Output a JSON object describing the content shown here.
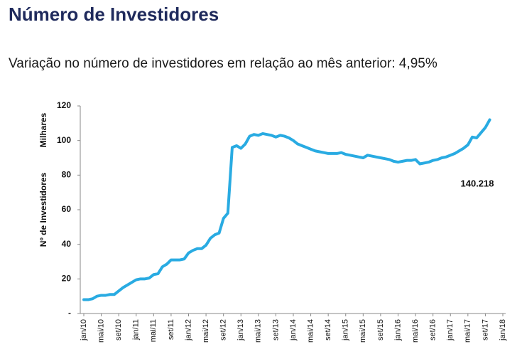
{
  "chart_data": {
    "type": "line",
    "title": "Número de Investidores",
    "subtitle": "Variação no número de investidores em relação ao mês anterior: 4,95%",
    "y_label": "Nº de Investidores",
    "y_unit": "Milhares",
    "annotation": "140.218",
    "color": "#29abe2",
    "ylim": [
      0,
      120
    ],
    "yticks": [
      {
        "value": 0,
        "label": "-"
      },
      20,
      40,
      60,
      80,
      100,
      120
    ],
    "categories": [
      "jan/10",
      null,
      null,
      null,
      "mai/10",
      null,
      null,
      null,
      "set/10",
      null,
      null,
      null,
      "jan/11",
      null,
      null,
      null,
      "mai/11",
      null,
      null,
      null,
      "set/11",
      null,
      null,
      null,
      "jan/12",
      null,
      null,
      null,
      "mai/12",
      null,
      null,
      null,
      "set/12",
      null,
      null,
      null,
      "jan/13",
      null,
      null,
      null,
      "mai/13",
      null,
      null,
      null,
      "set/13",
      null,
      null,
      null,
      "jan/14",
      null,
      null,
      null,
      "mai/14",
      null,
      null,
      null,
      "set/14",
      null,
      null,
      null,
      "jan/15",
      null,
      null,
      null,
      "mai/15",
      null,
      null,
      null,
      "set/15",
      null,
      null,
      null,
      "jan/16",
      null,
      null,
      null,
      "mai/16",
      null,
      null,
      null,
      "set/16",
      null,
      null,
      null,
      "jan/17",
      null,
      null,
      null,
      "mai/17",
      null,
      null,
      null,
      "set/17",
      null,
      null,
      null,
      "jan/18"
    ],
    "values": [
      8,
      8,
      8.5,
      10,
      10.5,
      10.5,
      11,
      11,
      13,
      15,
      16.5,
      18,
      19.5,
      20,
      20,
      20.5,
      22.5,
      23,
      27,
      28.5,
      31,
      31,
      31,
      31.5,
      35,
      36.5,
      37.5,
      37.5,
      39.5,
      43.5,
      45.5,
      46.5,
      55,
      58,
      96,
      97,
      95.5,
      98,
      102.5,
      103.5,
      103,
      104,
      103.5,
      103,
      102,
      103,
      102.5,
      101.5,
      100,
      98,
      97,
      96,
      95,
      94,
      93.5,
      93,
      92.5,
      92.5,
      92.5,
      93,
      92,
      91.5,
      91,
      90.5,
      90,
      91.5,
      91,
      90.5,
      90,
      89.5,
      89,
      88,
      87.5,
      88,
      88.5,
      88.5,
      89,
      86.5,
      87,
      87.5,
      88.5,
      89,
      90,
      90.5,
      91.5,
      92.5,
      94,
      95.5,
      97.5,
      102,
      101.5,
      104.5,
      107.5,
      112,
      null,
      null,
      null
    ]
  }
}
